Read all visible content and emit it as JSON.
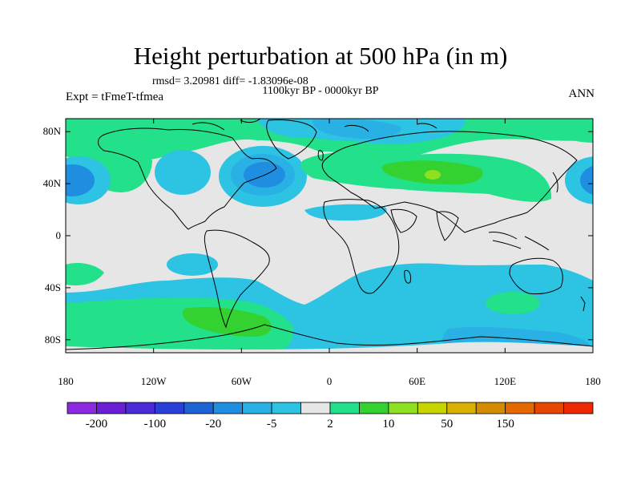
{
  "title": "Height perturbation at 500 hPa (in m)",
  "stats": "rmsd= 3.20981 diff= -1.83096e-08",
  "period": "1100kyr BP - 0000kyr BP",
  "experiment": "Expt = tFmeT-tfmea",
  "season": "ANN",
  "lat_labels": [
    {
      "text": "80N",
      "lat": 80
    },
    {
      "text": "40N",
      "lat": 40
    },
    {
      "text": "0",
      "lat": 0
    },
    {
      "text": "40S",
      "lat": -40
    },
    {
      "text": "80S",
      "lat": -80
    }
  ],
  "lon_labels": [
    {
      "text": "180",
      "lon": -180
    },
    {
      "text": "120W",
      "lon": -120
    },
    {
      "text": "60W",
      "lon": -60
    },
    {
      "text": "0",
      "lon": 0
    },
    {
      "text": "60E",
      "lon": 60
    },
    {
      "text": "120E",
      "lon": 120
    },
    {
      "text": "180",
      "lon": 180
    }
  ],
  "colorbar": {
    "colors": [
      "#8a2be2",
      "#6a1fd6",
      "#4b2ad8",
      "#2a3fd8",
      "#1e63d6",
      "#1f8ee0",
      "#29b0e4",
      "#2dc3e3",
      "#e6e6e6",
      "#23e08a",
      "#33d230",
      "#8ee020",
      "#c8d400",
      "#d7b200",
      "#d48b00",
      "#e46a00",
      "#e64600",
      "#ee2800"
    ],
    "labels": [
      {
        "text": "-200",
        "index": 1
      },
      {
        "text": "-100",
        "index": 3
      },
      {
        "text": "-20",
        "index": 5
      },
      {
        "text": "-5",
        "index": 7
      },
      {
        "text": "2",
        "index": 9
      },
      {
        "text": "10",
        "index": 11
      },
      {
        "text": "50",
        "index": 13
      },
      {
        "text": "150",
        "index": 15
      }
    ]
  },
  "field_colors": {
    "background": "#e6e6e6",
    "light_blue": "#2dc3e3",
    "mid_blue": "#29b0e4",
    "dark_blue": "#1f8ee0",
    "green": "#23e08a",
    "bright_green": "#33d230",
    "yellow_green": "#8ee020"
  }
}
